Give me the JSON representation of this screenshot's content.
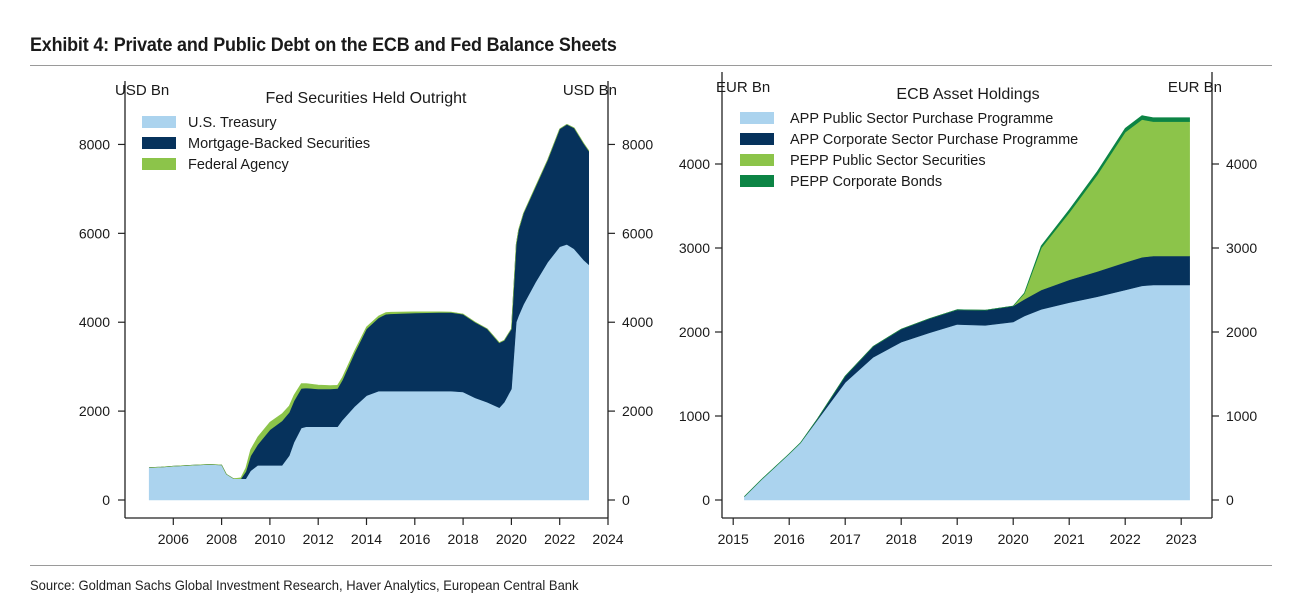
{
  "exhibit": {
    "title": "Exhibit 4: Private and Public Debt on the ECB and Fed Balance Sheets",
    "source": "Source: Goldman Sachs Global Investment Research, Haver Analytics, European Central Bank"
  },
  "colors": {
    "treasury": "#abd3ee",
    "mbs": "#06325c",
    "agency": "#8cc44a",
    "app_public": "#abd3ee",
    "app_corporate": "#06325c",
    "pepp_public": "#8cc44a",
    "pepp_corporate": "#0c8445"
  },
  "chart_data": [
    {
      "type": "area",
      "stacked": true,
      "title": "Fed Securities Held Outright",
      "ylabel_left": "USD Bn",
      "ylabel_right": "USD Bn",
      "xlim": [
        2004,
        2024
      ],
      "ylim": [
        0,
        9000
      ],
      "xticks": [
        2006,
        2008,
        2010,
        2012,
        2014,
        2016,
        2018,
        2020,
        2022,
        2024
      ],
      "yticks": [
        0,
        2000,
        4000,
        6000,
        8000
      ],
      "legend_position": "top-left",
      "x": [
        2005.0,
        2005.5,
        2006.0,
        2006.5,
        2007.0,
        2007.5,
        2008.0,
        2008.2,
        2008.5,
        2008.8,
        2009.0,
        2009.2,
        2009.5,
        2010.0,
        2010.5,
        2010.8,
        2011.0,
        2011.3,
        2011.5,
        2012.0,
        2012.5,
        2012.8,
        2013.0,
        2013.5,
        2014.0,
        2014.5,
        2014.8,
        2015.0,
        2016.0,
        2017.0,
        2017.5,
        2018.0,
        2018.5,
        2019.0,
        2019.5,
        2019.7,
        2020.0,
        2020.2,
        2020.3,
        2020.5,
        2021.0,
        2021.5,
        2022.0,
        2022.3,
        2022.6,
        2023.0,
        2023.2
      ],
      "series": [
        {
          "name": "U.S. Treasury",
          "values": [
            730,
            740,
            760,
            775,
            790,
            800,
            790,
            580,
            480,
            480,
            480,
            660,
            780,
            780,
            780,
            1000,
            1300,
            1620,
            1650,
            1650,
            1650,
            1650,
            1800,
            2100,
            2350,
            2450,
            2450,
            2450,
            2450,
            2450,
            2450,
            2430,
            2300,
            2200,
            2080,
            2200,
            2500,
            4000,
            4150,
            4400,
            4900,
            5350,
            5700,
            5750,
            5650,
            5400,
            5300
          ]
        },
        {
          "name": "Mortgage-Backed Securities",
          "values": [
            0,
            0,
            0,
            0,
            0,
            0,
            0,
            0,
            0,
            0,
            160,
            330,
            470,
            800,
            1000,
            970,
            930,
            890,
            870,
            850,
            850,
            860,
            900,
            1200,
            1500,
            1650,
            1730,
            1740,
            1760,
            1770,
            1770,
            1750,
            1700,
            1650,
            1460,
            1390,
            1350,
            1750,
            1930,
            2050,
            2150,
            2300,
            2650,
            2700,
            2720,
            2620,
            2560
          ]
        },
        {
          "name": "Federal Agency",
          "values": [
            0,
            0,
            0,
            0,
            0,
            0,
            0,
            0,
            0,
            20,
            80,
            140,
            170,
            170,
            160,
            145,
            130,
            110,
            100,
            85,
            75,
            70,
            60,
            50,
            45,
            40,
            38,
            35,
            25,
            15,
            10,
            5,
            5,
            3,
            3,
            3,
            3,
            3,
            3,
            3,
            3,
            3,
            3,
            3,
            3,
            3,
            3
          ]
        }
      ]
    },
    {
      "type": "area",
      "stacked": true,
      "title": "ECB Asset Holdings",
      "ylabel_left": "EUR Bn",
      "ylabel_right": "EUR Bn",
      "xlim": [
        2014.8,
        2023.55
      ],
      "ylim": [
        0,
        5000
      ],
      "xticks": [
        2015,
        2016,
        2017,
        2018,
        2019,
        2020,
        2021,
        2022,
        2023
      ],
      "yticks": [
        0,
        1000,
        2000,
        3000,
        4000
      ],
      "legend_position": "top-left",
      "x": [
        2015.2,
        2015.5,
        2016.0,
        2016.2,
        2016.5,
        2017.0,
        2017.5,
        2018.0,
        2018.5,
        2019.0,
        2019.5,
        2020.0,
        2020.2,
        2020.5,
        2021.0,
        2021.5,
        2022.0,
        2022.3,
        2022.5,
        2023.0,
        2023.15
      ],
      "series": [
        {
          "name": "APP Public Sector Purchase Programme",
          "values": [
            40,
            240,
            550,
            680,
            950,
            1400,
            1700,
            1880,
            1990,
            2090,
            2080,
            2120,
            2190,
            2270,
            2350,
            2420,
            2500,
            2550,
            2560,
            2560,
            2560
          ]
        },
        {
          "name": "APP Corporate Sector Purchase Programme",
          "values": [
            0,
            0,
            0,
            0,
            12,
            75,
            130,
            155,
            170,
            175,
            180,
            190,
            200,
            230,
            270,
            300,
            330,
            340,
            345,
            345,
            345
          ]
        },
        {
          "name": "PEPP Public Sector Securities",
          "values": [
            0,
            0,
            0,
            0,
            0,
            0,
            0,
            0,
            0,
            0,
            0,
            0,
            70,
            500,
            800,
            1150,
            1550,
            1640,
            1600,
            1600,
            1600
          ]
        },
        {
          "name": "PEPP Corporate Bonds",
          "values": [
            0,
            0,
            0,
            0,
            0,
            0,
            0,
            0,
            0,
            0,
            0,
            0,
            5,
            25,
            35,
            40,
            45,
            46,
            46,
            46,
            46
          ]
        }
      ]
    }
  ]
}
